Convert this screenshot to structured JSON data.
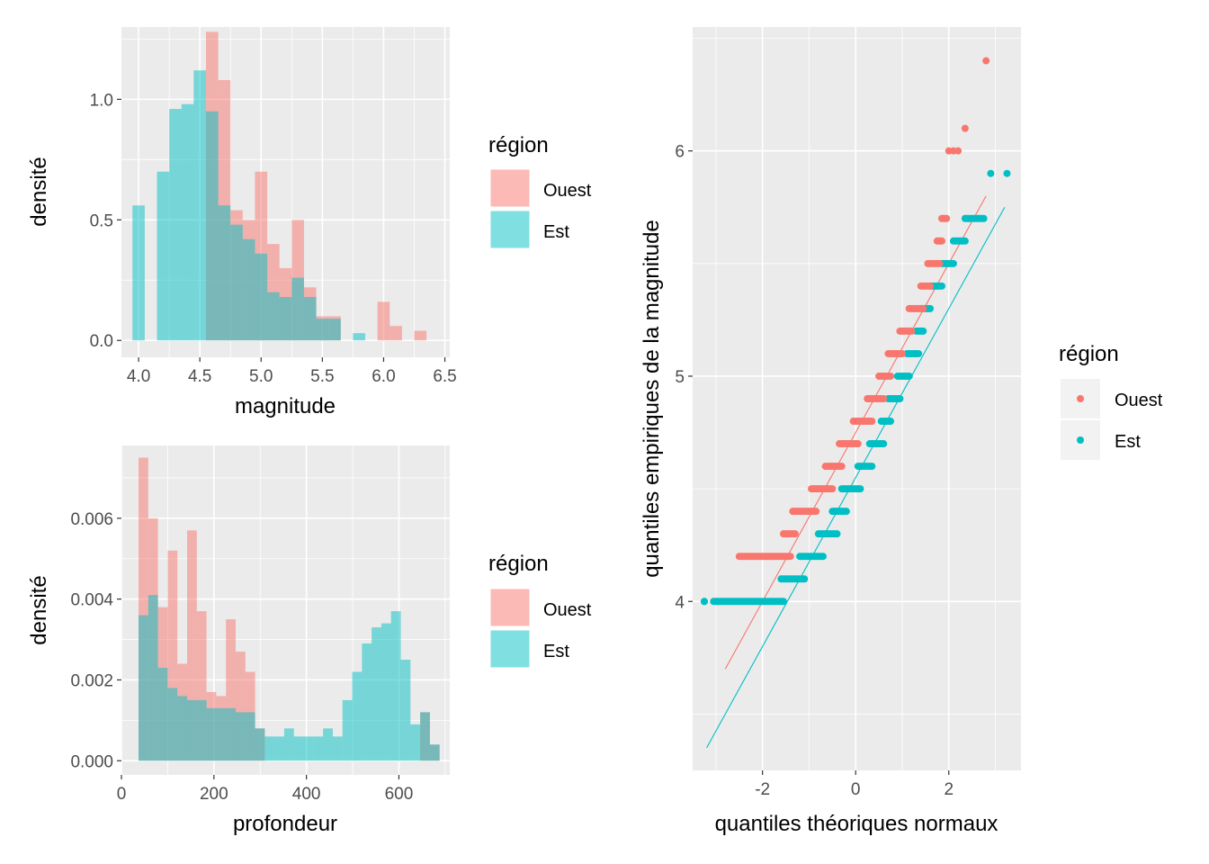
{
  "colors": {
    "ouest": "#F8766D",
    "est": "#00BFC4",
    "panel": "#EBEBEB",
    "grid_major": "#FFFFFF"
  },
  "chart_data": [
    {
      "id": "hist_magnitude",
      "type": "bar",
      "xlabel": "magnitude",
      "ylabel": "densité",
      "xlim": [
        3.86,
        6.54
      ],
      "ylim": [
        -0.07,
        1.3
      ],
      "xticks": [
        4.0,
        4.5,
        5.0,
        5.5,
        6.0,
        6.5
      ],
      "xtick_labels": [
        "4.0",
        "4.5",
        "5.0",
        "5.5",
        "6.0",
        "6.5"
      ],
      "yticks": [
        0.0,
        0.5,
        1.0
      ],
      "ytick_labels": [
        "0.0",
        "0.5",
        "1.0"
      ],
      "bin_width": 0.1,
      "bin_starts": [
        3.95,
        4.05,
        4.15,
        4.25,
        4.35,
        4.45,
        4.55,
        4.65,
        4.75,
        4.85,
        4.95,
        5.05,
        5.15,
        5.25,
        5.35,
        5.45,
        5.55,
        5.65,
        5.75,
        5.85,
        5.95,
        6.05,
        6.15,
        6.25,
        6.35
      ],
      "legend_title": "région",
      "series": [
        {
          "name": "Ouest",
          "values": [
            0.0,
            0.0,
            0.0,
            0.0,
            0.0,
            0.0,
            1.28,
            1.08,
            0.54,
            0.5,
            0.7,
            0.4,
            0.3,
            0.5,
            0.22,
            0.1,
            0.1,
            0.0,
            0.0,
            0.0,
            0.16,
            0.06,
            0.0,
            0.04,
            0.0
          ]
        },
        {
          "name": "Est",
          "values": [
            0.56,
            0.0,
            0.7,
            0.96,
            0.98,
            1.12,
            0.95,
            0.56,
            0.48,
            0.42,
            0.36,
            0.2,
            0.18,
            0.26,
            0.18,
            0.09,
            0.09,
            0.0,
            0.03,
            0.0,
            0.0,
            0.0,
            0.0,
            0.0,
            0.0
          ]
        }
      ]
    },
    {
      "id": "hist_profondeur",
      "type": "bar",
      "xlabel": "profondeur",
      "ylabel": "densité",
      "xlim": [
        0,
        710
      ],
      "ylim": [
        -0.00035,
        0.0078
      ],
      "xticks": [
        0,
        200,
        400,
        600
      ],
      "xtick_labels": [
        "0",
        "200",
        "400",
        "600"
      ],
      "yticks": [
        0.0,
        0.002,
        0.004,
        0.006
      ],
      "ytick_labels": [
        "0.000",
        "0.002",
        "0.004",
        "0.006"
      ],
      "bin_width": 21.0,
      "bin_starts": [
        37,
        58,
        79,
        100,
        121,
        142,
        163,
        184,
        205,
        226,
        247,
        268,
        289,
        310,
        331,
        352,
        373,
        394,
        415,
        436,
        457,
        478,
        499,
        520,
        541,
        562,
        583,
        604,
        625,
        646,
        667
      ],
      "legend_title": "région",
      "series": [
        {
          "name": "Ouest",
          "values": [
            0.0075,
            0.006,
            0.0038,
            0.0052,
            0.0024,
            0.0057,
            0.0037,
            0.0017,
            0.0016,
            0.0035,
            0.0027,
            0.0022,
            0.0008,
            0.0,
            0.0,
            0.0,
            0.0,
            0.0,
            0.0,
            0.0,
            0.0,
            0.0,
            0.0,
            0.0,
            0.0,
            0.0,
            0.0,
            0.0,
            0.0,
            0.0012,
            0.0004
          ]
        },
        {
          "name": "Est",
          "values": [
            0.0036,
            0.0041,
            0.0023,
            0.0018,
            0.0016,
            0.0015,
            0.0015,
            0.0013,
            0.0013,
            0.0013,
            0.0012,
            0.0012,
            0.0008,
            0.0006,
            0.0006,
            0.0008,
            0.0006,
            0.0006,
            0.0006,
            0.0008,
            0.0006,
            0.0015,
            0.0022,
            0.0029,
            0.0033,
            0.0034,
            0.0037,
            0.0025,
            0.0009,
            0.0012,
            0.0004
          ]
        }
      ]
    },
    {
      "id": "qq_magnitude",
      "type": "scatter",
      "xlabel": "quantiles théoriques normaux",
      "ylabel": "quantiles empiriques de la magnitude",
      "xlim": [
        -3.5,
        3.55
      ],
      "ylim": [
        3.25,
        6.55
      ],
      "xticks": [
        -2,
        0,
        2
      ],
      "xtick_labels": [
        "-2",
        "0",
        "2"
      ],
      "yticks": [
        4,
        5,
        6
      ],
      "ytick_labels": [
        "4",
        "5",
        "6"
      ],
      "legend_title": "région",
      "series": [
        {
          "name": "Ouest",
          "steps": [
            [
              -2.5,
              -1.4,
              4.2
            ],
            [
              -1.55,
              -1.3,
              4.3
            ],
            [
              -1.35,
              -0.85,
              4.4
            ],
            [
              -0.95,
              -0.5,
              4.5
            ],
            [
              -0.65,
              -0.3,
              4.6
            ],
            [
              -0.35,
              0.05,
              4.7
            ],
            [
              -0.05,
              0.35,
              4.8
            ],
            [
              0.25,
              0.6,
              4.9
            ],
            [
              0.5,
              0.75,
              5.0
            ],
            [
              0.7,
              1.0,
              5.1
            ],
            [
              0.95,
              1.2,
              5.2
            ],
            [
              1.15,
              1.45,
              5.3
            ],
            [
              1.4,
              1.6,
              5.4
            ],
            [
              1.55,
              1.8,
              5.5
            ],
            [
              1.75,
              1.85,
              5.6
            ],
            [
              1.85,
              1.95,
              5.7
            ]
          ],
          "points": [
            [
              2.0,
              6.0
            ],
            [
              2.1,
              6.0
            ],
            [
              2.2,
              6.0
            ],
            [
              2.35,
              6.1
            ],
            [
              2.8,
              6.4
            ]
          ],
          "line": [
            [
              -2.8,
              3.7
            ],
            [
              2.8,
              5.8
            ]
          ]
        },
        {
          "name": "Est",
          "steps": [
            [
              -3.25,
              -3.25,
              4.0
            ],
            [
              -3.05,
              -1.55,
              4.0
            ],
            [
              -1.6,
              -1.1,
              4.1
            ],
            [
              -1.2,
              -0.7,
              4.2
            ],
            [
              -0.8,
              -0.4,
              4.3
            ],
            [
              -0.5,
              -0.2,
              4.4
            ],
            [
              -0.3,
              0.1,
              4.5
            ],
            [
              0.05,
              0.35,
              4.6
            ],
            [
              0.3,
              0.6,
              4.7
            ],
            [
              0.55,
              0.75,
              4.8
            ],
            [
              0.7,
              0.95,
              4.9
            ],
            [
              0.9,
              1.15,
              5.0
            ],
            [
              1.1,
              1.35,
              5.1
            ],
            [
              1.3,
              1.45,
              5.2
            ],
            [
              1.4,
              1.6,
              5.3
            ],
            [
              1.6,
              1.85,
              5.4
            ],
            [
              1.85,
              2.1,
              5.5
            ],
            [
              2.1,
              2.35,
              5.6
            ],
            [
              2.35,
              2.75,
              5.7
            ]
          ],
          "points": [
            [
              2.9,
              5.9
            ],
            [
              3.25,
              5.9
            ]
          ],
          "line": [
            [
              -3.2,
              3.35
            ],
            [
              3.2,
              5.75
            ]
          ]
        }
      ]
    }
  ]
}
